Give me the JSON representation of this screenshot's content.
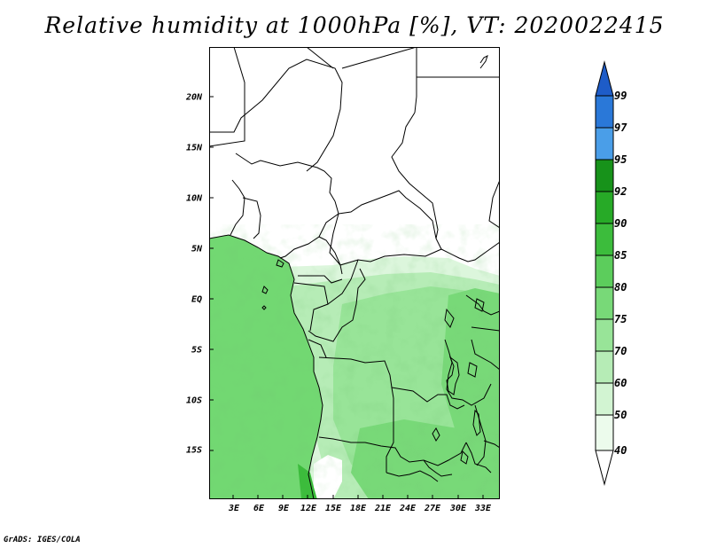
{
  "title": "Relative humidity at 1000hPa [%], VT: 2020022415",
  "map": {
    "lat_labels": [
      "20N",
      "15N",
      "10N",
      "5N",
      "EQ",
      "5S",
      "10S",
      "15S"
    ],
    "lon_labels": [
      "3E",
      "6E",
      "9E",
      "12E",
      "15E",
      "18E",
      "21E",
      "24E",
      "27E",
      "30E",
      "33E"
    ]
  },
  "colorbar": {
    "levels": [
      "99",
      "97",
      "95",
      "92",
      "90",
      "85",
      "80",
      "75",
      "70",
      "60",
      "50",
      "40"
    ],
    "colors": {
      "95-97": "#4a9ee8",
      "97-99": "#2a78d8",
      "99+": "#1e5cc8",
      "92-95": "#17921a",
      "90-92": "#27aa27",
      "85-90": "#3cbc3c",
      "80-85": "#5ccd5c",
      "75-80": "#78d978",
      "70-75": "#98e498",
      "60-70": "#b6ecb6",
      "50-60": "#d2f4d2",
      "40-50": "#ecfbec",
      "below-40": "#ffffff"
    }
  },
  "credit": "GrADS: IGES/COLA"
}
